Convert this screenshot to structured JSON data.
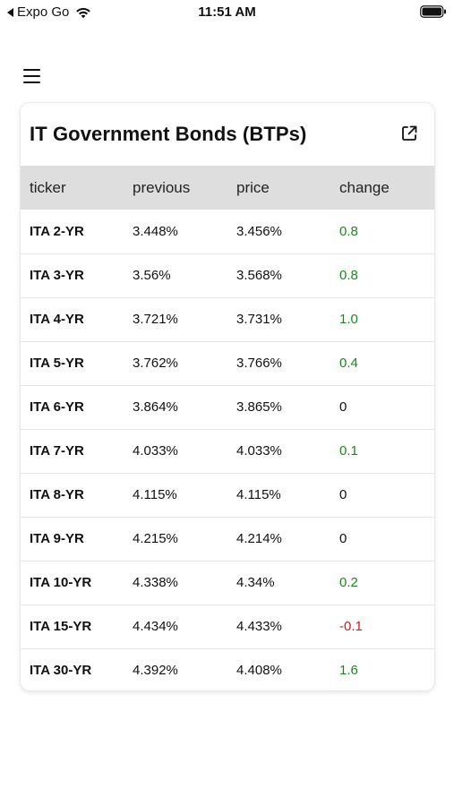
{
  "status_bar": {
    "back_label": "Expo Go",
    "time": "11:51 AM",
    "icons": [
      "back-arrow-icon",
      "wifi-icon",
      "battery-icon"
    ]
  },
  "menu": {
    "icon": "hamburger-menu-icon"
  },
  "card": {
    "title": "IT Government Bonds (BTPs)",
    "open_icon": "external-link-icon",
    "columns": [
      "ticker",
      "previous",
      "price",
      "change"
    ],
    "rows": [
      {
        "ticker": "ITA 2-YR",
        "previous": "3.448%",
        "price": "3.456%",
        "change": "0.8",
        "trend": "positive"
      },
      {
        "ticker": "ITA 3-YR",
        "previous": "3.56%",
        "price": "3.568%",
        "change": "0.8",
        "trend": "positive"
      },
      {
        "ticker": "ITA 4-YR",
        "previous": "3.721%",
        "price": "3.731%",
        "change": "1.0",
        "trend": "positive"
      },
      {
        "ticker": "ITA 5-YR",
        "previous": "3.762%",
        "price": "3.766%",
        "change": "0.4",
        "trend": "positive"
      },
      {
        "ticker": "ITA 6-YR",
        "previous": "3.864%",
        "price": "3.865%",
        "change": "0",
        "trend": "zero"
      },
      {
        "ticker": "ITA 7-YR",
        "previous": "4.033%",
        "price": "4.033%",
        "change": "0.1",
        "trend": "positive"
      },
      {
        "ticker": "ITA 8-YR",
        "previous": "4.115%",
        "price": "4.115%",
        "change": "0",
        "trend": "zero"
      },
      {
        "ticker": "ITA 9-YR",
        "previous": "4.215%",
        "price": "4.214%",
        "change": "0",
        "trend": "zero"
      },
      {
        "ticker": "ITA 10-YR",
        "previous": "4.338%",
        "price": "4.34%",
        "change": "0.2",
        "trend": "positive"
      },
      {
        "ticker": "ITA 15-YR",
        "previous": "4.434%",
        "price": "4.433%",
        "change": "-0.1",
        "trend": "negative"
      },
      {
        "ticker": "ITA 30-YR",
        "previous": "4.392%",
        "price": "4.408%",
        "change": "1.6",
        "trend": "positive"
      }
    ]
  },
  "colors": {
    "positive": "#1a8a1a",
    "negative": "#d11a1a",
    "header_bg": "#dedede"
  }
}
